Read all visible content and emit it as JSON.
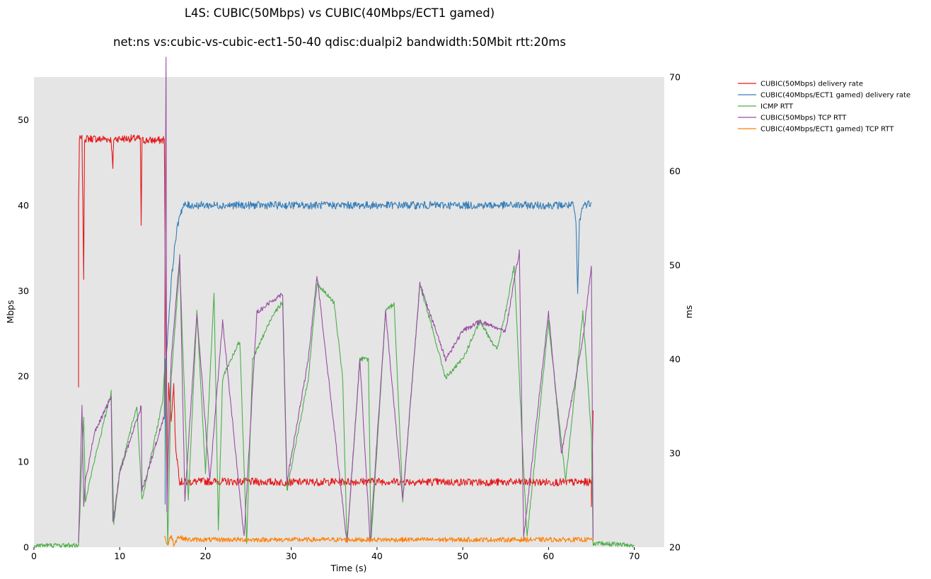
{
  "chart_data": {
    "type": "line",
    "title": "L4S: CUBIC(50Mbps) vs CUBIC(40Mbps/ECT1 gamed)",
    "subtitle": "net:ns vs:cubic-vs-cubic-ect1-50-40 qdisc:dualpi2 bandwidth:50Mbit rtt:20ms",
    "xlabel": "Time (s)",
    "ylabel": "Mbps",
    "y2label": "ms",
    "xlim": [
      0,
      73.5
    ],
    "ylim": [
      0,
      55
    ],
    "y2lim": [
      20,
      70
    ],
    "xticks": [
      "0",
      "10",
      "20",
      "30",
      "40",
      "50",
      "60",
      "70"
    ],
    "yticks": [
      "0",
      "10",
      "20",
      "30",
      "40",
      "50"
    ],
    "y2ticks": [
      "20",
      "30",
      "40",
      "50",
      "60",
      "70"
    ],
    "grid": false,
    "legend_position": "outside-top-right",
    "background": "#e5e5e5",
    "series": [
      {
        "name": "CUBIC(50Mbps) delivery rate",
        "axis": "left",
        "color": "#e41a1c",
        "points": [
          [
            5.2,
            18.7
          ],
          [
            5.2,
            40
          ],
          [
            5.3,
            47.7
          ],
          [
            5.6,
            47.8
          ],
          [
            5.7,
            40
          ],
          [
            5.8,
            31.6
          ],
          [
            5.9,
            47.8
          ],
          [
            7,
            47.8
          ],
          [
            7.8,
            47.7
          ],
          [
            8,
            47.8
          ],
          [
            9,
            47.7
          ],
          [
            9.2,
            44.2
          ],
          [
            9.3,
            47.8
          ],
          [
            12.4,
            47.8
          ],
          [
            12.5,
            37.7
          ],
          [
            12.6,
            47.6
          ],
          [
            15,
            47.6
          ],
          [
            15.2,
            47.8
          ],
          [
            15.4,
            20
          ],
          [
            15.5,
            8
          ],
          [
            15.7,
            19
          ],
          [
            16,
            15
          ],
          [
            16.3,
            19
          ],
          [
            16.5,
            12
          ],
          [
            17,
            7.7
          ],
          [
            17.5,
            7.6
          ],
          [
            20,
            7.7
          ],
          [
            30,
            7.6
          ],
          [
            40,
            7.7
          ],
          [
            50,
            7.6
          ],
          [
            60,
            7.6
          ],
          [
            65,
            7.6
          ],
          [
            65,
            5
          ],
          [
            65.2,
            16
          ]
        ]
      },
      {
        "name": "CUBIC(40Mbps/ECT1 gamed) delivery rate",
        "axis": "left",
        "color": "#377eb8",
        "points": [
          [
            15.3,
            5
          ],
          [
            15.3,
            20
          ],
          [
            15.6,
            25
          ],
          [
            16,
            31
          ],
          [
            16.5,
            36
          ],
          [
            17,
            39
          ],
          [
            17.5,
            40
          ],
          [
            20,
            40
          ],
          [
            30,
            40
          ],
          [
            40,
            40
          ],
          [
            50,
            40
          ],
          [
            60,
            40
          ],
          [
            62.9,
            40
          ],
          [
            63.2,
            38
          ],
          [
            63.4,
            29.5
          ],
          [
            63.6,
            38
          ],
          [
            64,
            40
          ],
          [
            65,
            40.3
          ]
        ]
      },
      {
        "name": "ICMP RTT",
        "axis": "right",
        "color": "#4daf4a",
        "points": [
          [
            0,
            20.2
          ],
          [
            5.2,
            20.2
          ],
          [
            5.8,
            34
          ],
          [
            6,
            25
          ],
          [
            7,
            29
          ],
          [
            9,
            36.5
          ],
          [
            9.3,
            22.5
          ],
          [
            10,
            28
          ],
          [
            12,
            35
          ],
          [
            12.6,
            25
          ],
          [
            15,
            35.5
          ],
          [
            15.3,
            40
          ],
          [
            15.6,
            20
          ],
          [
            16,
            38
          ],
          [
            17,
            50
          ],
          [
            18,
            25
          ],
          [
            19,
            45
          ],
          [
            20,
            28
          ],
          [
            21,
            47
          ],
          [
            21.5,
            22
          ],
          [
            22,
            38
          ],
          [
            24,
            42
          ],
          [
            24.8,
            20.5
          ],
          [
            25.5,
            40
          ],
          [
            28,
            45
          ],
          [
            29,
            46
          ],
          [
            29.5,
            26
          ],
          [
            32,
            38
          ],
          [
            33,
            48
          ],
          [
            35,
            46
          ],
          [
            36,
            38
          ],
          [
            36.5,
            20.5
          ],
          [
            38,
            40
          ],
          [
            39,
            40
          ],
          [
            39.3,
            20.5
          ],
          [
            41,
            45
          ],
          [
            42,
            46
          ],
          [
            43,
            25
          ],
          [
            45,
            48
          ],
          [
            48,
            38
          ],
          [
            50,
            40
          ],
          [
            52,
            44
          ],
          [
            54,
            41
          ],
          [
            55,
            45
          ],
          [
            56,
            50
          ],
          [
            57,
            30
          ],
          [
            57.5,
            21
          ],
          [
            60,
            44
          ],
          [
            62,
            27
          ],
          [
            64,
            45
          ],
          [
            65,
            32
          ],
          [
            65.2,
            20.2
          ],
          [
            66,
            20.4
          ],
          [
            70,
            20.2
          ]
        ]
      },
      {
        "name": "CUBIC(50Mbps) TCP RTT",
        "axis": "right",
        "color": "#984ea3",
        "points": [
          [
            5.2,
            20.5
          ],
          [
            5.6,
            35
          ],
          [
            5.8,
            24.5
          ],
          [
            6,
            27
          ],
          [
            7,
            32
          ],
          [
            9,
            36
          ],
          [
            9.2,
            22.5
          ],
          [
            10,
            28
          ],
          [
            12.5,
            35
          ],
          [
            12.6,
            26
          ],
          [
            15.2,
            34
          ],
          [
            15.4,
            72
          ],
          [
            15.5,
            24
          ],
          [
            16,
            40
          ],
          [
            17,
            51
          ],
          [
            17.6,
            25
          ],
          [
            19,
            45
          ],
          [
            20.5,
            27
          ],
          [
            22,
            44
          ],
          [
            24.5,
            21
          ],
          [
            26,
            45
          ],
          [
            29,
            47
          ],
          [
            29.5,
            27
          ],
          [
            32,
            40
          ],
          [
            33,
            49
          ],
          [
            36.5,
            20.5
          ],
          [
            38,
            40
          ],
          [
            39.2,
            20.5
          ],
          [
            41,
            45
          ],
          [
            43,
            25
          ],
          [
            45,
            48
          ],
          [
            48,
            40
          ],
          [
            50,
            43
          ],
          [
            52,
            44
          ],
          [
            55,
            43
          ],
          [
            56.6,
            51.5
          ],
          [
            57.1,
            21
          ],
          [
            60,
            45
          ],
          [
            61.5,
            30
          ],
          [
            64,
            42
          ],
          [
            65,
            50
          ],
          [
            65.2,
            21
          ]
        ]
      },
      {
        "name": "CUBIC(40Mbps/ECT1 gamed) TCP RTT",
        "axis": "right",
        "color": "#ff7f00",
        "points": [
          [
            15.2,
            21.2
          ],
          [
            15.6,
            20.2
          ],
          [
            16,
            21.3
          ],
          [
            16.3,
            20.3
          ],
          [
            16.8,
            21.1
          ],
          [
            18,
            20.8
          ],
          [
            20,
            20.8
          ],
          [
            30,
            20.8
          ],
          [
            40,
            20.8
          ],
          [
            50,
            20.8
          ],
          [
            60,
            20.8
          ],
          [
            65.2,
            20.8
          ]
        ]
      }
    ]
  }
}
